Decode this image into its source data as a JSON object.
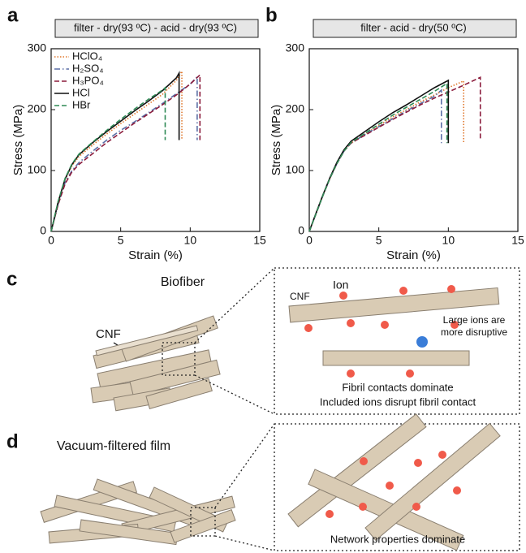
{
  "chart_data": [
    {
      "type": "line",
      "label": "a",
      "title": "filter - dry(93 ºC) - acid - dry(93 ºC)",
      "x_label": "Strain (%)",
      "y_label": "Stress (MPa)",
      "xlim": [
        0,
        15
      ],
      "ylim": [
        0,
        300
      ],
      "xticks": [
        0,
        5,
        10,
        15
      ],
      "yticks": [
        0,
        100,
        200,
        300
      ],
      "legend": "upper left",
      "series": [
        {
          "name": "HClO₄",
          "color": "#e0782e",
          "style": "dotted",
          "x": [
            0,
            0.5,
            1,
            1.5,
            2,
            3,
            4,
            5,
            6,
            7,
            8,
            9,
            9.4,
            9.4
          ],
          "values": [
            0,
            48,
            85,
            108,
            123,
            142,
            160,
            177,
            193,
            209,
            225,
            248,
            263,
            150
          ]
        },
        {
          "name": "H₂SO₄",
          "color": "#5b6fa6",
          "style": "dashdot",
          "x": [
            0,
            0.5,
            1,
            1.5,
            2,
            3,
            4,
            5,
            6,
            7,
            8,
            9,
            10,
            10.5,
            10.5
          ],
          "values": [
            0,
            45,
            80,
            100,
            113,
            132,
            150,
            166,
            180,
            195,
            210,
            226,
            242,
            254,
            150
          ]
        },
        {
          "name": "H₃PO₄",
          "color": "#8b1c3c",
          "style": "dashed",
          "x": [
            0,
            0.5,
            1,
            1.5,
            2,
            3,
            4,
            5,
            6,
            7,
            8,
            9,
            10,
            10.7,
            10.7
          ],
          "values": [
            0,
            44,
            78,
            98,
            110,
            128,
            146,
            162,
            178,
            193,
            208,
            224,
            242,
            257,
            150
          ]
        },
        {
          "name": "HCl",
          "color": "#111111",
          "style": "solid",
          "x": [
            0,
            0.5,
            1,
            1.5,
            2,
            3,
            4,
            5,
            6,
            7,
            8,
            9,
            9.2,
            9.2
          ],
          "values": [
            0,
            48,
            86,
            110,
            126,
            146,
            164,
            181,
            198,
            214,
            231,
            252,
            260,
            150
          ]
        },
        {
          "name": "HBr",
          "color": "#2e8a55",
          "style": "dashed",
          "x": [
            0,
            0.5,
            1,
            1.5,
            2,
            3,
            4,
            5,
            6,
            7,
            8,
            8.2,
            8.2
          ],
          "values": [
            0,
            49,
            87,
            111,
            127,
            147,
            166,
            184,
            201,
            217,
            232,
            236,
            150
          ]
        }
      ]
    },
    {
      "type": "line",
      "label": "b",
      "title": "filter - acid - dry(50 ºC)",
      "x_label": "Strain (%)",
      "y_label": "Stress (MPa)",
      "xlim": [
        0,
        15
      ],
      "ylim": [
        0,
        300
      ],
      "xticks": [
        0,
        5,
        10,
        15
      ],
      "yticks": [
        0,
        100,
        200,
        300
      ],
      "series": [
        {
          "name": "HClO₄",
          "color": "#e0782e",
          "style": "dotted",
          "x": [
            0,
            0.5,
            1,
            1.5,
            2,
            2.5,
            3,
            4,
            5,
            6,
            7,
            8,
            9,
            10,
            11.1,
            11.1
          ],
          "values": [
            0,
            30,
            60,
            88,
            112,
            132,
            145,
            160,
            174,
            188,
            200,
            213,
            224,
            236,
            247,
            145
          ]
        },
        {
          "name": "H₂SO₄",
          "color": "#5b6fa6",
          "style": "dashdot",
          "x": [
            0,
            0.5,
            1,
            1.5,
            2,
            2.5,
            3,
            4,
            5,
            6,
            7,
            8,
            9,
            9.5,
            9.5
          ],
          "values": [
            0,
            30,
            60,
            88,
            112,
            132,
            145,
            159,
            172,
            185,
            198,
            210,
            222,
            232,
            145
          ]
        },
        {
          "name": "H₃PO₄",
          "color": "#8b1c3c",
          "style": "dashed",
          "x": [
            0,
            0.5,
            1,
            1.5,
            2,
            2.5,
            3,
            4,
            5,
            6,
            7,
            8,
            9,
            10,
            11,
            12.3,
            12.3
          ],
          "values": [
            0,
            30,
            60,
            88,
            112,
            132,
            145,
            158,
            171,
            184,
            196,
            208,
            219,
            229,
            239,
            253,
            150
          ]
        },
        {
          "name": "HCl",
          "color": "#111111",
          "style": "solid",
          "x": [
            0,
            0.5,
            1,
            1.5,
            2,
            2.5,
            3,
            4,
            5,
            6,
            7,
            8,
            9,
            10,
            10,
            10
          ],
          "values": [
            0,
            31,
            61,
            89,
            114,
            134,
            148,
            164,
            180,
            195,
            208,
            222,
            236,
            248,
            248,
            145
          ]
        },
        {
          "name": "HBr",
          "color": "#2e8a55",
          "style": "dashed",
          "x": [
            0,
            0.5,
            1,
            1.5,
            2,
            2.5,
            3,
            4,
            5,
            6,
            7,
            8,
            9,
            9.9,
            9.9
          ],
          "values": [
            0,
            30,
            60,
            88,
            112,
            132,
            146,
            161,
            176,
            191,
            204,
            217,
            230,
            243,
            145
          ]
        }
      ]
    }
  ],
  "diagrams": {
    "c": {
      "label": "c",
      "title": "Biofiber",
      "fiber_label": "CNF",
      "inset": {
        "fiber_label": "CNF",
        "ion_label": "Ion",
        "note": [
          "Large ions are",
          "more disruptive"
        ],
        "caption": [
          "Fibril contacts dominate",
          "Included ions disrupt fibril contact"
        ]
      }
    },
    "d": {
      "label": "d",
      "title": "Vacuum-filtered film",
      "inset": {
        "caption": "Network properties dominate"
      }
    }
  }
}
